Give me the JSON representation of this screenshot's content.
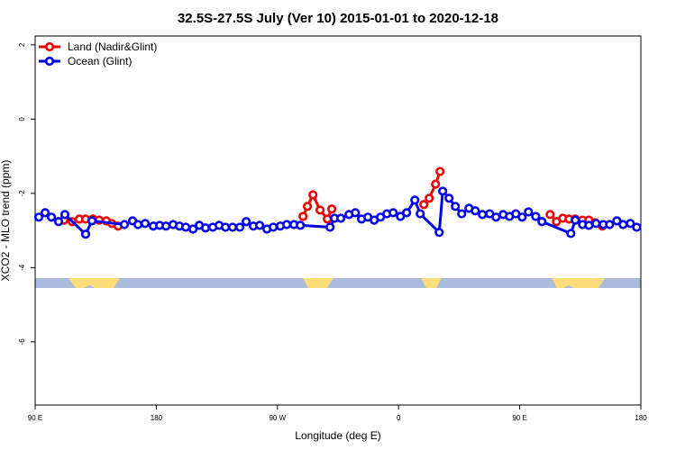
{
  "chart_data": {
    "type": "line",
    "title": "32.5S-27.5S July (Ver 10)   2015-01-01 to 2020-12-18",
    "x_label": "Longitude (deg E)",
    "y_label": "XCO2 - MLO trend (ppm)",
    "xlim": [
      90,
      540
    ],
    "xticks": [
      {
        "value": 90,
        "label": "90 E"
      },
      180,
      {
        "value": 270,
        "label": "90 W"
      },
      {
        "value": 360,
        "label": "0"
      },
      {
        "value": 450,
        "label": "90 E"
      },
      {
        "value": 540,
        "label": "180"
      }
    ],
    "ylim": [
      -7.7,
      2.24
    ],
    "yticks": [
      2,
      0,
      -2,
      -4,
      -6
    ],
    "legend": "top-left",
    "series": [
      {
        "name": "Land (Nadir&Glint)",
        "color": "#ee0000",
        "x": [
          111.4,
          117.5,
          122.8,
          127.5,
          132.9,
          137.6,
          142.9,
          147.0,
          151.6,
          null,
          289.0,
          292.3,
          296.4,
          301.7,
          307.1,
          310.4,
          null,
          378.8,
          382.8,
          387.5,
          390.8,
          null,
          472.6,
          477.3,
          482.0,
          486.6,
          491.3,
          496.7,
          501.4,
          506.1,
          511.4
        ],
        "values": [
          -2.72,
          -2.76,
          -2.69,
          -2.69,
          -2.69,
          -2.72,
          -2.74,
          -2.81,
          -2.88,
          null,
          -2.62,
          -2.35,
          -2.04,
          -2.45,
          -2.69,
          -2.42,
          null,
          -2.3,
          -2.13,
          -1.75,
          -1.41,
          null,
          -2.57,
          -2.76,
          -2.67,
          -2.69,
          -2.69,
          -2.72,
          -2.72,
          -2.79,
          -2.88
        ]
      },
      {
        "name": "Ocean (Glint)",
        "color": "#0000ee",
        "x": [
          92.7,
          97.4,
          102.1,
          107.4,
          112.1,
          127.5,
          132.2,
          156.3,
          162.4,
          166.4,
          171.7,
          177.8,
          182.5,
          187.2,
          192.5,
          197.2,
          201.9,
          207.3,
          212.0,
          216.6,
          222.0,
          226.7,
          231.4,
          236.7,
          242.1,
          246.8,
          252.1,
          256.8,
          262.2,
          266.9,
          272.2,
          276.9,
          282.3,
          287.0,
          309.1,
          312.4,
          317.1,
          323.2,
          327.9,
          332.5,
          337.2,
          341.9,
          346.6,
          351.3,
          356.0,
          361.4,
          366.0,
          372.1,
          376.1,
          390.2,
          392.8,
          397.5,
          402.2,
          406.9,
          412.3,
          417.0,
          422.3,
          427.7,
          432.4,
          437.7,
          442.4,
          447.1,
          451.8,
          456.5,
          461.9,
          466.5,
          488.0,
          491.3,
          496.7,
          501.4,
          506.7,
          512.1,
          516.8,
          522.2,
          526.8,
          532.2,
          536.9
        ],
        "values": [
          -2.64,
          -2.52,
          -2.64,
          -2.76,
          -2.57,
          -3.1,
          -2.74,
          -2.84,
          -2.74,
          -2.84,
          -2.81,
          -2.88,
          -2.86,
          -2.88,
          -2.84,
          -2.88,
          -2.91,
          -2.96,
          -2.86,
          -2.93,
          -2.91,
          -2.86,
          -2.91,
          -2.91,
          -2.91,
          -2.76,
          -2.88,
          -2.86,
          -2.96,
          -2.91,
          -2.88,
          -2.84,
          -2.84,
          -2.86,
          -2.91,
          -2.67,
          -2.67,
          -2.57,
          -2.52,
          -2.69,
          -2.64,
          -2.72,
          -2.64,
          -2.55,
          -2.52,
          -2.62,
          -2.52,
          -2.18,
          -2.55,
          -3.05,
          -1.94,
          -2.13,
          -2.35,
          -2.55,
          -2.4,
          -2.47,
          -2.57,
          -2.55,
          -2.64,
          -2.57,
          -2.62,
          -2.55,
          -2.64,
          -2.5,
          -2.62,
          -2.76,
          -3.08,
          -2.72,
          -2.84,
          -2.86,
          -2.81,
          -2.84,
          -2.84,
          -2.74,
          -2.84,
          -2.81,
          -2.91
        ]
      }
    ]
  }
}
